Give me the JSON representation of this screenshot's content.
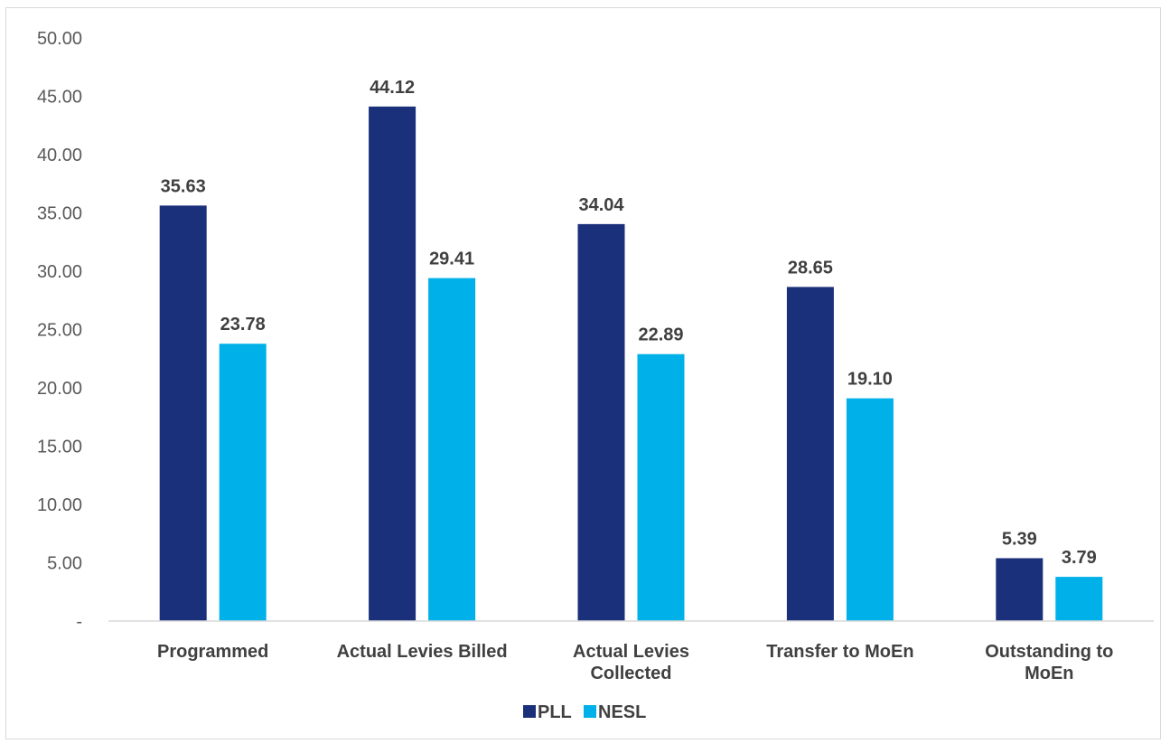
{
  "chart_data": {
    "type": "bar",
    "categories": [
      [
        "Programmed"
      ],
      [
        "Actual Levies Billed"
      ],
      [
        "Actual Levies",
        "Collected"
      ],
      [
        "Transfer to MoEn"
      ],
      [
        "Outstanding to",
        "MoEn"
      ]
    ],
    "series": [
      {
        "name": "PLL",
        "color": "#1b307a",
        "values": [
          35.63,
          44.12,
          34.04,
          28.65,
          5.39
        ],
        "labels": [
          "35.63",
          "44.12",
          "34.04",
          "28.65",
          "5.39"
        ]
      },
      {
        "name": "NESL",
        "color": "#00b0e8",
        "values": [
          23.78,
          29.41,
          22.89,
          19.1,
          3.79
        ],
        "labels": [
          "23.78",
          "29.41",
          "22.89",
          "19.10",
          "3.79"
        ]
      }
    ],
    "yticks": [
      "-",
      "5.00",
      "10.00",
      "15.00",
      "20.00",
      "25.00",
      "30.00",
      "35.00",
      "40.00",
      "45.00",
      "50.00"
    ],
    "ylim": [
      0,
      50
    ],
    "grid": false,
    "legend_position": "bottom"
  }
}
